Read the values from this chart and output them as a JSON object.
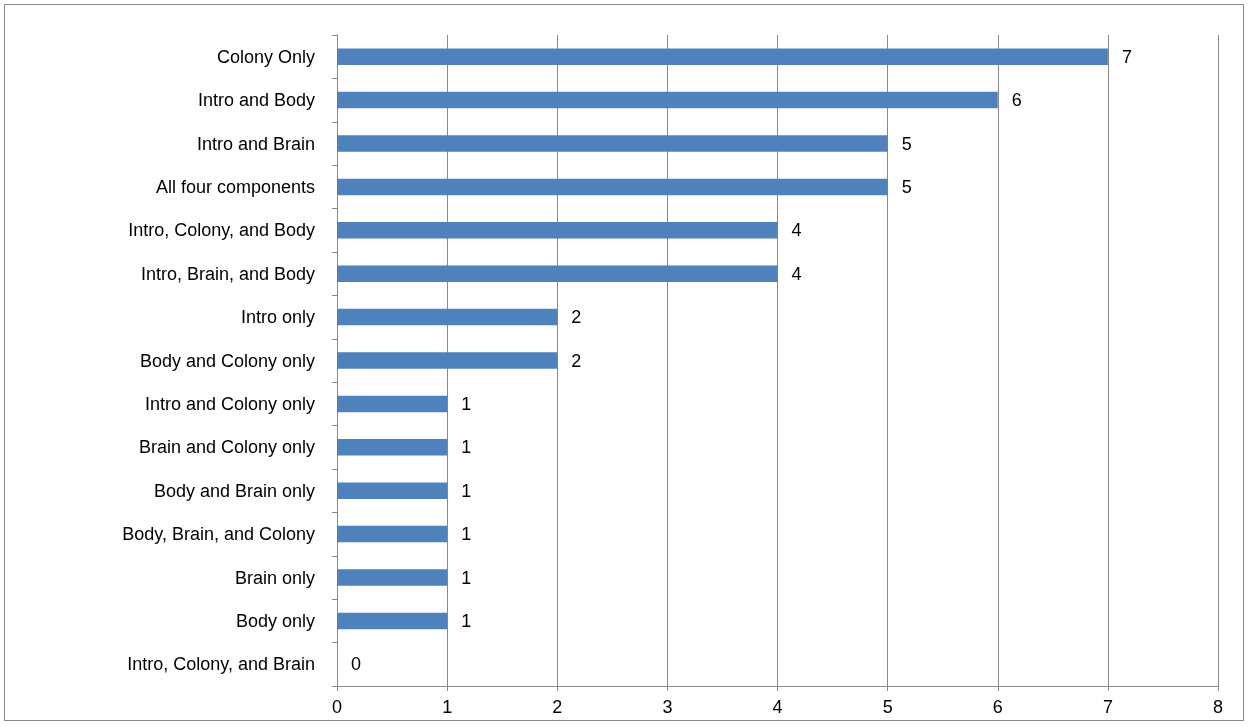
{
  "chart_data": {
    "type": "bar",
    "orientation": "horizontal",
    "categories": [
      "Colony Only",
      "Intro and Body",
      "Intro and Brain",
      "All four components",
      "Intro, Colony, and Body",
      "Intro, Brain, and Body",
      "Intro only",
      "Body and Colony only",
      "Intro and Colony only",
      "Brain and Colony only",
      "Body and Brain only",
      "Body, Brain, and Colony",
      "Brain only",
      "Body only",
      "Intro, Colony, and Brain"
    ],
    "values": [
      7,
      6,
      5,
      5,
      4,
      4,
      2,
      2,
      1,
      1,
      1,
      1,
      1,
      1,
      0
    ],
    "color": "#4f81bd",
    "xlim": [
      0,
      8
    ],
    "xticks": [
      0,
      1,
      2,
      3,
      4,
      5,
      6,
      7,
      8
    ],
    "grid": "x",
    "data_labels": true
  }
}
